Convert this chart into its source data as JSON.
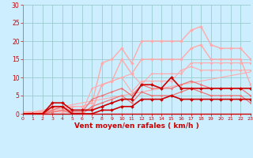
{
  "background_color": "#cceeff",
  "grid_color": "#99cccc",
  "xlabel": "Vent moyen/en rafales ( km/h )",
  "xlabel_color": "#cc0000",
  "tick_color": "#cc0000",
  "xlim": [
    0,
    23
  ],
  "ylim": [
    0,
    30
  ],
  "yticks": [
    0,
    5,
    10,
    15,
    20,
    25,
    30
  ],
  "xticks": [
    0,
    1,
    2,
    3,
    4,
    5,
    6,
    7,
    8,
    9,
    10,
    11,
    12,
    13,
    14,
    15,
    16,
    17,
    18,
    19,
    20,
    21,
    22,
    23
  ],
  "series": [
    {
      "x": [
        0,
        1,
        2,
        3,
        4,
        5,
        6,
        7,
        8,
        9,
        10,
        11,
        12,
        13,
        14,
        15,
        16,
        17,
        18,
        19,
        20,
        21,
        22,
        23
      ],
      "y": [
        0,
        0.5,
        1,
        1.5,
        2,
        2.5,
        3,
        3.5,
        4,
        4.5,
        5,
        5.5,
        6,
        6.5,
        7,
        7.5,
        8,
        8.5,
        9,
        9.5,
        10,
        10.5,
        11,
        11.5
      ],
      "color": "#ffaaaa",
      "linewidth": 0.8,
      "marker": null,
      "markersize": 0
    },
    {
      "x": [
        0,
        1,
        2,
        3,
        4,
        5,
        6,
        7,
        8,
        9,
        10,
        11,
        12,
        13,
        14,
        15,
        16,
        17,
        18,
        19,
        20,
        21,
        22,
        23
      ],
      "y": [
        0,
        0,
        0,
        0,
        0,
        0,
        0,
        0,
        0,
        0,
        0,
        0,
        0,
        0,
        0,
        0,
        0,
        0,
        0,
        0,
        0,
        0,
        0,
        0
      ],
      "color": "#ffaaaa",
      "linewidth": 0.8,
      "marker": null,
      "markersize": 0
    },
    {
      "x": [
        0,
        2,
        3,
        4,
        5,
        6,
        7,
        8,
        9,
        10,
        11,
        12,
        13,
        14,
        15,
        16,
        17,
        18,
        19,
        20,
        21,
        22,
        23
      ],
      "y": [
        0,
        0,
        0.5,
        1,
        1,
        1,
        1.5,
        8,
        9,
        10,
        11,
        8,
        11,
        11,
        11,
        11,
        14,
        14,
        14,
        14,
        14,
        14,
        14
      ],
      "color": "#ffaaaa",
      "linewidth": 0.8,
      "marker": "D",
      "markersize": 1.5
    },
    {
      "x": [
        0,
        1,
        2,
        3,
        4,
        5,
        6,
        7,
        8,
        9,
        10,
        11,
        12,
        13,
        14,
        15,
        16,
        17,
        18,
        19,
        20,
        21,
        22,
        23
      ],
      "y": [
        0.5,
        0.5,
        0.5,
        0.5,
        0.5,
        0.5,
        0.5,
        7,
        8,
        9,
        10,
        6,
        9,
        9,
        9,
        9,
        12,
        13,
        12,
        12,
        12,
        12,
        12,
        12
      ],
      "color": "#ffaaaa",
      "linewidth": 0.8,
      "marker": "D",
      "markersize": 1.5
    },
    {
      "x": [
        0,
        3,
        4,
        5,
        6,
        7,
        8,
        9,
        10,
        11,
        12,
        13,
        14,
        15,
        16,
        17,
        18,
        19,
        20,
        21,
        22,
        23
      ],
      "y": [
        0,
        1,
        1.5,
        2,
        2,
        3,
        14,
        15,
        18,
        14,
        20,
        20,
        20,
        20,
        20,
        23,
        24,
        19,
        18,
        18,
        18,
        15
      ],
      "color": "#ffaaaa",
      "linewidth": 1.0,
      "marker": "D",
      "markersize": 2
    },
    {
      "x": [
        0,
        3,
        4,
        5,
        6,
        7,
        8,
        9,
        10,
        11,
        12,
        13,
        14,
        15,
        16,
        17,
        18,
        19,
        20,
        21,
        22,
        23
      ],
      "y": [
        0,
        0.5,
        1,
        1,
        1,
        1,
        8,
        9,
        15,
        11,
        15,
        15,
        15,
        15,
        15,
        18,
        19,
        15,
        15,
        15,
        15,
        8
      ],
      "color": "#ffaaaa",
      "linewidth": 1.0,
      "marker": "D",
      "markersize": 2
    },
    {
      "x": [
        0,
        1,
        2,
        3,
        4,
        5,
        6,
        7,
        8,
        9,
        10,
        11,
        12,
        13,
        14,
        15,
        16,
        17,
        18,
        19,
        20,
        21,
        22,
        23
      ],
      "y": [
        0,
        0,
        0,
        1,
        2,
        0.5,
        0.5,
        4,
        5,
        6,
        7,
        5,
        8,
        7,
        7,
        7,
        8,
        9,
        8,
        7,
        7,
        7,
        7,
        5
      ],
      "color": "#ee7777",
      "linewidth": 0.9,
      "marker": "D",
      "markersize": 1.5
    },
    {
      "x": [
        0,
        1,
        2,
        3,
        4,
        5,
        6,
        7,
        8,
        9,
        10,
        11,
        12,
        13,
        14,
        15,
        16,
        17,
        18,
        19,
        20,
        21,
        22,
        23
      ],
      "y": [
        0,
        0,
        0,
        0.5,
        1,
        0,
        0,
        2,
        3,
        4,
        5,
        3,
        6,
        5,
        5,
        5,
        6,
        7,
        6,
        5,
        5,
        5,
        5,
        3
      ],
      "color": "#ee7777",
      "linewidth": 0.9,
      "marker": "D",
      "markersize": 1.5
    },
    {
      "x": [
        0,
        1,
        2,
        3,
        4,
        5,
        6,
        7,
        8,
        9,
        10,
        11,
        12,
        13,
        14,
        15,
        16,
        17,
        18,
        19,
        20,
        21,
        22,
        23
      ],
      "y": [
        0,
        0,
        0,
        3,
        3,
        1,
        1,
        1,
        2,
        3,
        4,
        4,
        8,
        8,
        7,
        10,
        7,
        7,
        7,
        7,
        7,
        7,
        7,
        7
      ],
      "color": "#cc0000",
      "linewidth": 1.2,
      "marker": "D",
      "markersize": 2
    },
    {
      "x": [
        0,
        1,
        2,
        3,
        4,
        5,
        6,
        7,
        8,
        9,
        10,
        11,
        12,
        13,
        14,
        15,
        16,
        17,
        18,
        19,
        20,
        21,
        22,
        23
      ],
      "y": [
        0,
        0,
        0,
        2,
        2,
        0,
        0,
        0,
        1,
        1,
        2,
        2,
        4,
        4,
        4,
        5,
        4,
        4,
        4,
        4,
        4,
        4,
        4,
        4
      ],
      "color": "#cc0000",
      "linewidth": 1.2,
      "marker": "D",
      "markersize": 2
    }
  ],
  "arrow_row_color": "#cc0000",
  "separator_color": "#cc0000",
  "spine_color": "#888888"
}
